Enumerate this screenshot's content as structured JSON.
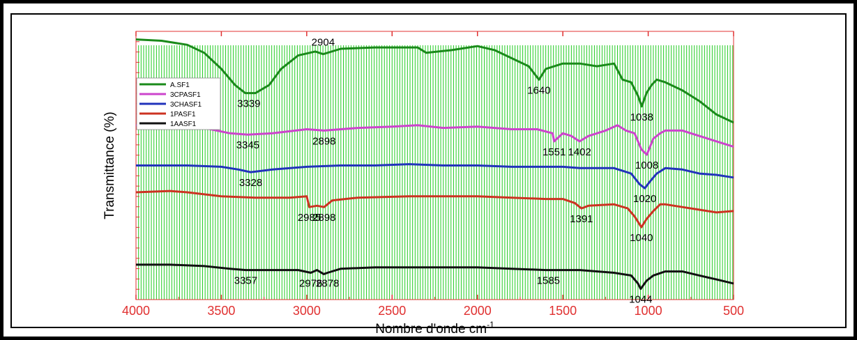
{
  "chart_data": {
    "type": "line",
    "title": "",
    "xlabel": "Nombre d'onde cm",
    "xlabel_superscript": "-1",
    "ylabel": "Transmittance (%)",
    "xlim": [
      4000,
      500
    ],
    "ylim": [
      0,
      100
    ],
    "x_ticks": [
      "4000",
      "3500",
      "3000",
      "2500",
      "2000",
      "1500",
      "1000",
      "500"
    ],
    "x_tick_values": [
      4000,
      3500,
      3000,
      2500,
      2000,
      1500,
      1000,
      500
    ],
    "grid": "vertical",
    "grid_color": "#22cc22",
    "axis_color": "#e03030",
    "legend_position": "top-left",
    "series": [
      {
        "name": "A.SF1",
        "color": "#1a8a1a",
        "points": [
          [
            4000,
            97
          ],
          [
            3850,
            96.5
          ],
          [
            3700,
            95
          ],
          [
            3600,
            92
          ],
          [
            3500,
            86
          ],
          [
            3420,
            80
          ],
          [
            3360,
            77
          ],
          [
            3300,
            77
          ],
          [
            3220,
            80
          ],
          [
            3150,
            86
          ],
          [
            3050,
            91
          ],
          [
            2950,
            92.5
          ],
          [
            2904,
            91.5
          ],
          [
            2800,
            93.5
          ],
          [
            2600,
            94
          ],
          [
            2350,
            94
          ],
          [
            2300,
            92
          ],
          [
            2150,
            93
          ],
          [
            2000,
            94.5
          ],
          [
            1900,
            93
          ],
          [
            1800,
            90
          ],
          [
            1700,
            87
          ],
          [
            1640,
            82
          ],
          [
            1600,
            86
          ],
          [
            1500,
            88
          ],
          [
            1400,
            88
          ],
          [
            1300,
            87
          ],
          [
            1200,
            88
          ],
          [
            1150,
            82
          ],
          [
            1100,
            81
          ],
          [
            1060,
            76
          ],
          [
            1038,
            72
          ],
          [
            1010,
            77
          ],
          [
            980,
            80
          ],
          [
            950,
            82
          ],
          [
            900,
            81
          ],
          [
            800,
            78
          ],
          [
            700,
            74
          ],
          [
            600,
            69
          ],
          [
            500,
            66
          ]
        ]
      },
      {
        "name": "3CPASF1",
        "color": "#cc44cc",
        "points": [
          [
            4000,
            65
          ],
          [
            3800,
            65
          ],
          [
            3600,
            64
          ],
          [
            3450,
            62
          ],
          [
            3345,
            61.5
          ],
          [
            3200,
            62
          ],
          [
            3000,
            63.5
          ],
          [
            2898,
            63
          ],
          [
            2700,
            64
          ],
          [
            2500,
            64.5
          ],
          [
            2350,
            65
          ],
          [
            2200,
            64
          ],
          [
            2000,
            64.5
          ],
          [
            1800,
            63.5
          ],
          [
            1650,
            63.5
          ],
          [
            1560,
            62
          ],
          [
            1551,
            59
          ],
          [
            1500,
            62
          ],
          [
            1450,
            61
          ],
          [
            1402,
            59
          ],
          [
            1350,
            61
          ],
          [
            1250,
            63
          ],
          [
            1180,
            65
          ],
          [
            1130,
            63
          ],
          [
            1080,
            62
          ],
          [
            1040,
            56
          ],
          [
            1008,
            54
          ],
          [
            970,
            60
          ],
          [
            930,
            62
          ],
          [
            900,
            63
          ],
          [
            800,
            63
          ],
          [
            700,
            61
          ],
          [
            600,
            59
          ],
          [
            500,
            57
          ]
        ]
      },
      {
        "name": "3CHASF1",
        "color": "#2233bb",
        "points": [
          [
            4000,
            50
          ],
          [
            3700,
            50
          ],
          [
            3500,
            49.5
          ],
          [
            3400,
            48.5
          ],
          [
            3328,
            47.5
          ],
          [
            3200,
            48.5
          ],
          [
            3000,
            49.5
          ],
          [
            2800,
            50
          ],
          [
            2600,
            50
          ],
          [
            2400,
            50.5
          ],
          [
            2200,
            50
          ],
          [
            2000,
            50
          ],
          [
            1800,
            49.5
          ],
          [
            1600,
            49.5
          ],
          [
            1500,
            49.5
          ],
          [
            1400,
            49
          ],
          [
            1200,
            49
          ],
          [
            1100,
            47
          ],
          [
            1050,
            43
          ],
          [
            1020,
            41.5
          ],
          [
            990,
            44
          ],
          [
            950,
            47
          ],
          [
            900,
            49
          ],
          [
            800,
            48.5
          ],
          [
            700,
            47
          ],
          [
            600,
            46.5
          ],
          [
            500,
            45.5
          ]
        ]
      },
      {
        "name": "1PASF1",
        "color": "#cc3322",
        "points": [
          [
            4000,
            40
          ],
          [
            3800,
            40.5
          ],
          [
            3700,
            40
          ],
          [
            3500,
            38.5
          ],
          [
            3300,
            38
          ],
          [
            3100,
            38
          ],
          [
            3000,
            38.5
          ],
          [
            2985,
            34.5
          ],
          [
            2940,
            35
          ],
          [
            2898,
            34.5
          ],
          [
            2850,
            37
          ],
          [
            2700,
            38
          ],
          [
            2400,
            38.5
          ],
          [
            2200,
            38.5
          ],
          [
            2000,
            38.5
          ],
          [
            1800,
            38
          ],
          [
            1600,
            37.5
          ],
          [
            1500,
            37.5
          ],
          [
            1430,
            36
          ],
          [
            1391,
            34
          ],
          [
            1350,
            35
          ],
          [
            1200,
            35.5
          ],
          [
            1120,
            34
          ],
          [
            1080,
            31
          ],
          [
            1040,
            27
          ],
          [
            1010,
            30
          ],
          [
            970,
            33
          ],
          [
            930,
            35.5
          ],
          [
            900,
            35.5
          ],
          [
            800,
            34.5
          ],
          [
            700,
            33.5
          ],
          [
            600,
            32.5
          ],
          [
            500,
            33
          ]
        ]
      },
      {
        "name": "1AASF1",
        "color": "#111111",
        "points": [
          [
            4000,
            13
          ],
          [
            3800,
            13
          ],
          [
            3600,
            12.5
          ],
          [
            3450,
            11.5
          ],
          [
            3357,
            11
          ],
          [
            3200,
            11
          ],
          [
            3050,
            11
          ],
          [
            2976,
            10
          ],
          [
            2940,
            11
          ],
          [
            2900,
            9.5
          ],
          [
            2878,
            10
          ],
          [
            2800,
            11.5
          ],
          [
            2600,
            12
          ],
          [
            2400,
            12
          ],
          [
            2200,
            12
          ],
          [
            2000,
            12
          ],
          [
            1800,
            11.5
          ],
          [
            1600,
            11
          ],
          [
            1400,
            11
          ],
          [
            1200,
            10
          ],
          [
            1100,
            9
          ],
          [
            1060,
            6
          ],
          [
            1044,
            4
          ],
          [
            1010,
            7
          ],
          [
            970,
            9
          ],
          [
            900,
            10.5
          ],
          [
            800,
            10.5
          ],
          [
            700,
            9
          ],
          [
            600,
            7.5
          ],
          [
            500,
            6
          ]
        ]
      }
    ],
    "annotations": [
      {
        "text": "3339",
        "series": 0
      },
      {
        "text": "2904",
        "series": 0
      },
      {
        "text": "1640",
        "series": 0
      },
      {
        "text": "1038",
        "series": 0
      },
      {
        "text": "3345",
        "series": 1
      },
      {
        "text": "2898",
        "series": 1
      },
      {
        "text": "1551",
        "series": 1
      },
      {
        "text": "1402",
        "series": 1
      },
      {
        "text": "1008",
        "series": 1
      },
      {
        "text": "3328",
        "series": 2
      },
      {
        "text": "1020",
        "series": 2
      },
      {
        "text": "2985",
        "series": 3
      },
      {
        "text": "2898",
        "series": 3
      },
      {
        "text": "1391",
        "series": 3
      },
      {
        "text": "1040",
        "series": 3
      },
      {
        "text": "3357",
        "series": 4
      },
      {
        "text": "2976",
        "series": 4
      },
      {
        "text": "2878",
        "series": 4
      },
      {
        "text": "1585",
        "series": 4
      },
      {
        "text": "1044",
        "series": 4
      }
    ]
  }
}
